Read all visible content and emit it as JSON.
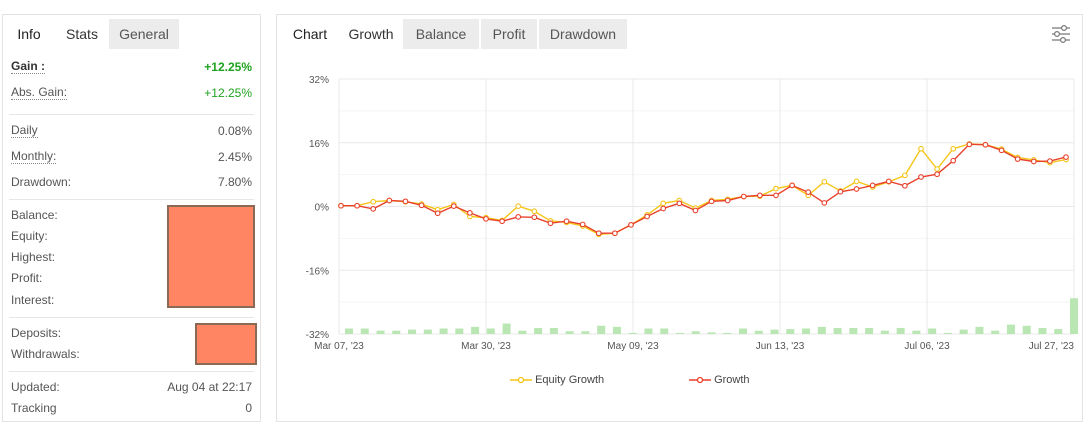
{
  "left": {
    "tabs": [
      {
        "label": "Info"
      },
      {
        "label": "Stats"
      },
      {
        "label": "General"
      }
    ],
    "gain_label": "Gain :",
    "gain_value": "+12.25%",
    "abs_gain_label": "Abs. Gain:",
    "abs_gain_value": "+12.25%",
    "daily_label": "Daily",
    "daily_value": "0.08%",
    "monthly_label": "Monthly:",
    "monthly_value": "2.45%",
    "drawdown_label": "Drawdown:",
    "drawdown_value": "7.80%",
    "balance_label": "Balance:",
    "equity_label": "Equity:",
    "highest_label": "Highest:",
    "profit_label": "Profit:",
    "interest_label": "Interest:",
    "deposits_label": "Deposits:",
    "withdrawals_label": "Withdrawals:",
    "updated_label": "Updated:",
    "updated_value": "Aug 04 at 22:17",
    "tracking_label": "Tracking",
    "tracking_value": "0"
  },
  "right": {
    "tabs": [
      {
        "label": "Chart"
      },
      {
        "label": "Growth"
      },
      {
        "label": "Balance"
      },
      {
        "label": "Profit"
      },
      {
        "label": "Drawdown"
      }
    ],
    "settings_icon": "sliders-icon"
  },
  "colors": {
    "equity": "#f5c518",
    "growth": "#e8412c",
    "bars": "#b9e6b3",
    "redact": "#ff8563",
    "gain_green": "#1fa21f"
  },
  "chart_data": {
    "type": "line",
    "x_tick_labels": [
      "Mar 07, '23",
      "Mar 30, '23",
      "May 09, '23",
      "Jun 13, '23",
      "Jul 06, '23",
      "Jul 27, '23"
    ],
    "y_tick_labels": [
      "32%",
      "16%",
      "0%",
      "-16%",
      "-32%"
    ],
    "ylim": [
      -32,
      32
    ],
    "grid": true,
    "legend": "bottom-center",
    "series": [
      {
        "name": "Equity Growth",
        "values": [
          0.2,
          0.2,
          1.2,
          1.5,
          1.2,
          0.6,
          -0.8,
          0.5,
          -2.5,
          -2.8,
          -3.5,
          0.1,
          -1.2,
          -3.6,
          -4.0,
          -4.9,
          -7.0,
          -6.7,
          -4.6,
          -2.1,
          0.8,
          1.5,
          -0.4,
          1.5,
          1.8,
          2.5,
          2.6,
          4.5,
          5.3,
          2.8,
          6.2,
          3.9,
          6.3,
          4.9,
          6.2,
          7.8,
          14.5,
          9.4,
          14.5,
          15.7,
          15.5,
          14.4,
          12.3,
          11.7,
          11.0,
          11.8
        ]
      },
      {
        "name": "Growth",
        "values": [
          0.2,
          0.2,
          -0.6,
          1.5,
          1.3,
          0.3,
          -1.7,
          0.1,
          -1.6,
          -3.1,
          -3.7,
          -2.6,
          -2.7,
          -4.2,
          -3.7,
          -4.5,
          -6.7,
          -6.7,
          -4.6,
          -2.5,
          -0.5,
          0.8,
          -1.0,
          1.3,
          1.5,
          2.5,
          2.8,
          2.8,
          5.3,
          3.6,
          0.9,
          3.7,
          4.4,
          5.3,
          6.3,
          5.2,
          7.4,
          8.1,
          11.5,
          15.6,
          15.5,
          14.1,
          11.9,
          11.3,
          11.4,
          12.4
        ]
      }
    ],
    "volume_bars": [
      1,
      1,
      0.6,
      0.6,
      0.8,
      0.8,
      1,
      1,
      1.3,
      1,
      1.9,
      0.6,
      1.1,
      1.1,
      0.5,
      0.5,
      1.5,
      1.3,
      0.2,
      1,
      1,
      0.2,
      0.5,
      0.3,
      0.2,
      1,
      0.6,
      0.8,
      0.9,
      1,
      1.3,
      1.1,
      1.1,
      1.1,
      0.6,
      1.1,
      0.6,
      1,
      0.2,
      0.8,
      1.3,
      0.6,
      1.7,
      1.5,
      1.1,
      0.9,
      6.5
    ]
  }
}
